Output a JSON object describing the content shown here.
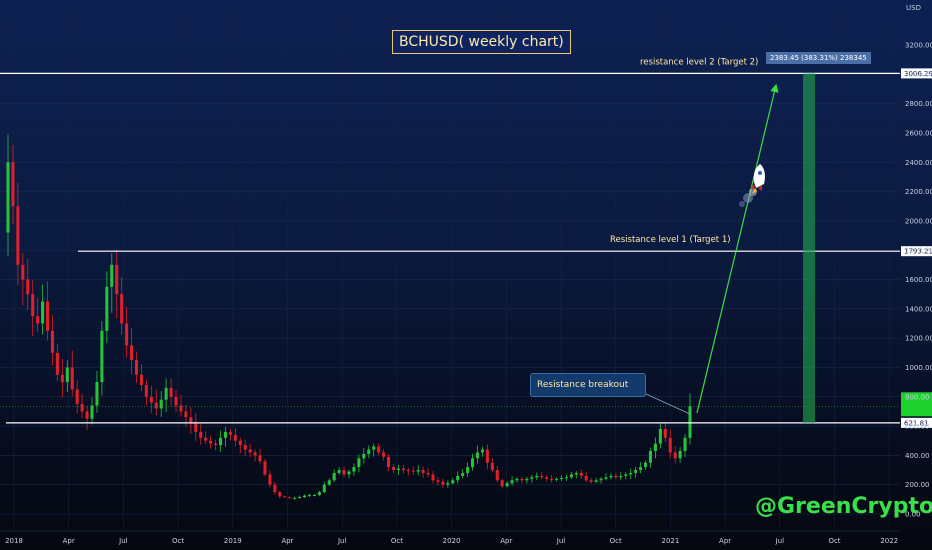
{
  "chart_data": {
    "type": "candlestick",
    "title": "BCHUSD( weekly chart)",
    "currency_label": "USD",
    "y_ticks": [
      0,
      200,
      400,
      600,
      800,
      1000,
      1200,
      1400,
      1600,
      1800,
      2000,
      2200,
      2400,
      2600,
      2800,
      3000,
      3200
    ],
    "y_tick_labels": [
      "0.00",
      "200.00",
      "400.00",
      "600.00",
      "800.00",
      "1000.00",
      "1200.00",
      "1400.00",
      "1600.00",
      "1800.00",
      "2000.00",
      "2200.00",
      "2400.00",
      "2600.00",
      "2800.00",
      "3000.00",
      "3200.00"
    ],
    "x_ticks": [
      "2018",
      "Apr",
      "Jul",
      "Oct",
      "2019",
      "Apr",
      "Jul",
      "Oct",
      "2020",
      "Apr",
      "Jul",
      "Oct",
      "2021",
      "Apr",
      "Jul",
      "Oct",
      "2022"
    ],
    "levels": [
      {
        "name": "resistance level 2 (Target 2)",
        "value": 3006.29,
        "label": "3006.29"
      },
      {
        "name": "Resistance level 1 (Target 1)",
        "value": 1793.21,
        "label": "1793.21"
      },
      {
        "name": "",
        "value": 621.81,
        "label": "621.81"
      }
    ],
    "current_price": 735,
    "projection_label": "2383.45 (383.31%) 238345",
    "annotation": "Resistance breakout",
    "watermark": "@GreenCrypto",
    "colors": {
      "up": "#26c43a",
      "down": "#e0202a",
      "line": "#ffffff",
      "arrow": "#3adf44",
      "target_box": "#1f9e4c"
    },
    "weekly_close": [
      2400,
      2100,
      1700,
      1600,
      1500,
      1350,
      1300,
      1450,
      1250,
      1100,
      950,
      900,
      1000,
      850,
      750,
      700,
      650,
      740,
      900,
      1250,
      1550,
      1700,
      1500,
      1300,
      1150,
      1050,
      950,
      880,
      800,
      760,
      720,
      780,
      860,
      800,
      740,
      700,
      660,
      620,
      560,
      520,
      500,
      480,
      470,
      520,
      560,
      540,
      500,
      470,
      440,
      420,
      400,
      360,
      270,
      200,
      150,
      120,
      115,
      110,
      110,
      115,
      125,
      130,
      130,
      150,
      200,
      230,
      280,
      300,
      270,
      290,
      320,
      380,
      410,
      440,
      460,
      420,
      390,
      320,
      300,
      310,
      300,
      295,
      290,
      300,
      280,
      270,
      230,
      220,
      200,
      210,
      230,
      260,
      280,
      320,
      380,
      420,
      440,
      350,
      300,
      230,
      190,
      210,
      230,
      240,
      230,
      240,
      250,
      260,
      250,
      240,
      235,
      240,
      245,
      250,
      270,
      280,
      260,
      230,
      220,
      230,
      240,
      250,
      260,
      250,
      260,
      270,
      280,
      300,
      320,
      350,
      430,
      480,
      580,
      520,
      420,
      380,
      430,
      520,
      735
    ]
  }
}
